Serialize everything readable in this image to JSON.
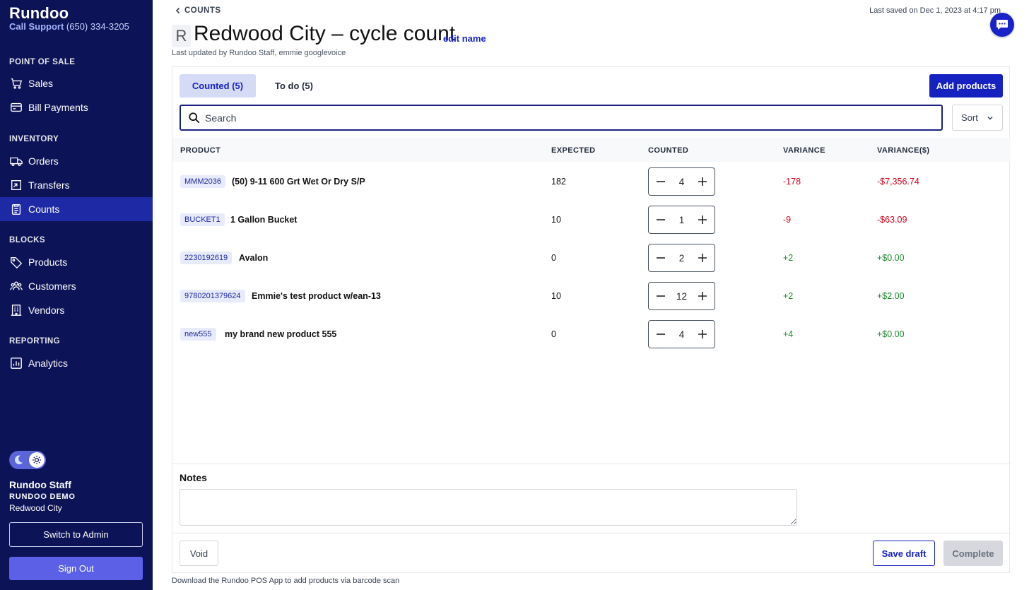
{
  "sidebar": {
    "brand": "Rundoo",
    "support_label": "Call Support",
    "support_phone": "(650) 334-3205",
    "sections": [
      {
        "label": "POINT OF SALE"
      },
      {
        "label": "INVENTORY"
      },
      {
        "label": "BLOCKS"
      },
      {
        "label": "REPORTING"
      }
    ],
    "items": [
      {
        "label": "Sales",
        "icon": "cart-icon"
      },
      {
        "label": "Bill Payments",
        "icon": "credit-card-icon"
      },
      {
        "label": "Orders",
        "icon": "truck-icon"
      },
      {
        "label": "Transfers",
        "icon": "transfer-icon"
      },
      {
        "label": "Counts",
        "icon": "clipboard-icon",
        "active": true
      },
      {
        "label": "Products",
        "icon": "tag-icon"
      },
      {
        "label": "Customers",
        "icon": "users-icon"
      },
      {
        "label": "Vendors",
        "icon": "building-icon"
      },
      {
        "label": "Analytics",
        "icon": "chart-icon"
      }
    ],
    "user": {
      "name": "Rundoo Staff",
      "org": "RUNDOO DEMO",
      "location": "Redwood City"
    },
    "switch_label": "Switch to Admin",
    "signout_label": "Sign Out"
  },
  "header": {
    "back_label": "COUNTS",
    "saved_text": "Last saved on Dec 1, 2023 at 4:17 pm",
    "avatar_letter": "R",
    "title": "Redwood City – cycle count",
    "edit_label": "edit name",
    "updated_text": "Last updated by Rundoo Staff, emmie googlevoice"
  },
  "tabs": [
    {
      "label": "Counted (5)",
      "active": true
    },
    {
      "label": "To do (5)",
      "active": false
    }
  ],
  "add_products_label": "Add products",
  "search": {
    "placeholder": "Search",
    "value": ""
  },
  "sort_label": "Sort",
  "table": {
    "columns": [
      "PRODUCT",
      "EXPECTED",
      "COUNTED",
      "VARIANCE",
      "VARIANCE($)"
    ],
    "rows": [
      {
        "sku": "MMM2036",
        "name": "(50) 9-11 600 Grt Wet Or Dry S/P",
        "expected": "182",
        "counted": "4",
        "variance": "-178",
        "variance_dollars": "-$7,356.74"
      },
      {
        "sku": "BUCKET1",
        "name": "1 Gallon Bucket",
        "expected": "10",
        "counted": "1",
        "variance": "-9",
        "variance_dollars": "-$63.09"
      },
      {
        "sku": "2230192619",
        "name": "Avalon",
        "expected": "0",
        "counted": "2",
        "variance": "+2",
        "variance_dollars": "+$0.00"
      },
      {
        "sku": "9780201379624",
        "name": "Emmie's test product w/ean-13",
        "expected": "10",
        "counted": "12",
        "variance": "+2",
        "variance_dollars": "+$2.00"
      },
      {
        "sku": "new555",
        "name": "my brand new product 555",
        "expected": "0",
        "counted": "4",
        "variance": "+4",
        "variance_dollars": "+$0.00"
      }
    ]
  },
  "notes": {
    "label": "Notes",
    "value": ""
  },
  "actions": {
    "void_label": "Void",
    "save_draft_label": "Save draft",
    "complete_label": "Complete"
  },
  "footer_note": "Download the Rundoo POS App to add products via barcode scan",
  "colors": {
    "sidebar_bg": "#0d1357",
    "accent": "#1522c0",
    "negative": "#d0021b",
    "positive": "#1e8a2e"
  }
}
